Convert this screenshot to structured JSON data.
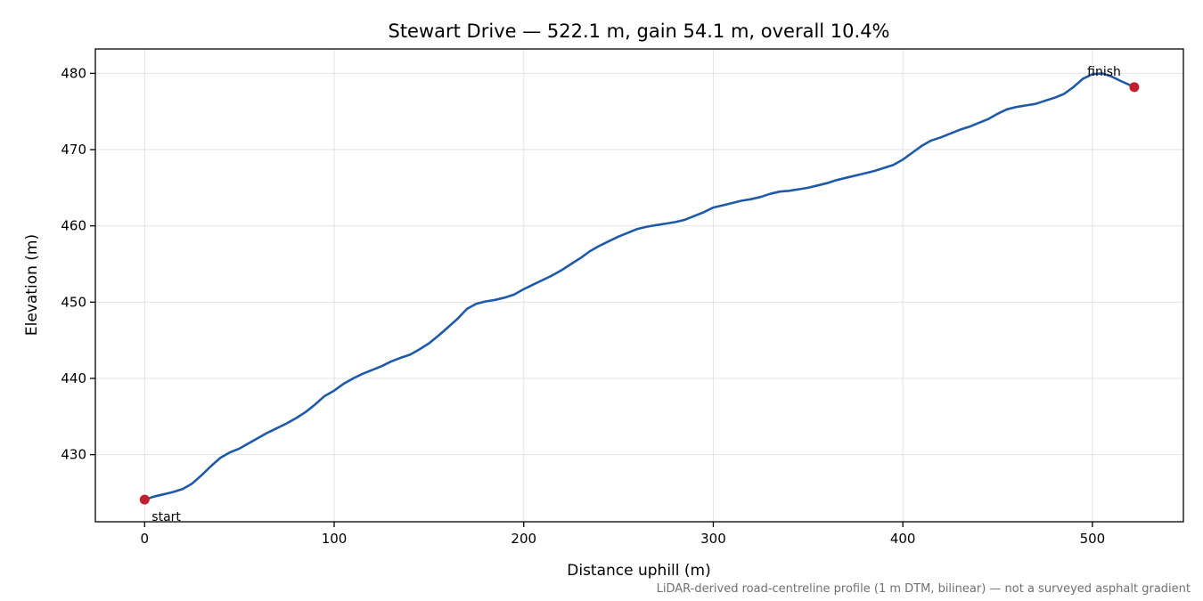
{
  "chart_data": {
    "type": "line",
    "title": "Stewart Drive — 522.1 m, gain 54.1 m, overall 10.4%",
    "xlabel": "Distance uphill (m)",
    "ylabel": "Elevation (m)",
    "xlim": [
      -26,
      548
    ],
    "ylim": [
      421.2,
      483.2
    ],
    "xticks": [
      0,
      100,
      200,
      300,
      400,
      500
    ],
    "yticks": [
      430,
      440,
      450,
      460,
      470,
      480
    ],
    "grid": true,
    "line_color": "#1f5aa8",
    "marker_color": "#c0202e",
    "series": [
      {
        "x": [
          0,
          5,
          10,
          15,
          20,
          25,
          30,
          35,
          40,
          45,
          50,
          55,
          60,
          65,
          70,
          75,
          80,
          85,
          90,
          95,
          100,
          105,
          110,
          115,
          120,
          125,
          130,
          135,
          140,
          145,
          150,
          155,
          160,
          165,
          170,
          175,
          180,
          185,
          190,
          195,
          200,
          205,
          210,
          215,
          220,
          225,
          230,
          235,
          240,
          245,
          250,
          255,
          260,
          265,
          270,
          275,
          280,
          285,
          290,
          295,
          300,
          305,
          310,
          315,
          320,
          325,
          330,
          335,
          340,
          345,
          350,
          355,
          360,
          365,
          370,
          375,
          380,
          385,
          390,
          395,
          400,
          405,
          410,
          415,
          420,
          425,
          430,
          435,
          440,
          445,
          450,
          455,
          460,
          465,
          470,
          475,
          480,
          485,
          490,
          495,
          500,
          505,
          510,
          515,
          522.1
        ],
        "y": [
          424.1,
          424.5,
          424.8,
          425.1,
          425.5,
          426.2,
          427.3,
          428.5,
          429.6,
          430.3,
          430.8,
          431.5,
          432.2,
          432.9,
          433.5,
          434.1,
          434.8,
          435.6,
          436.6,
          437.7,
          438.4,
          439.3,
          440.0,
          440.6,
          441.1,
          441.6,
          442.2,
          442.7,
          443.1,
          443.8,
          444.6,
          445.6,
          446.7,
          447.8,
          449.1,
          449.8,
          450.1,
          450.3,
          450.6,
          451.0,
          451.7,
          452.3,
          452.9,
          453.5,
          454.2,
          455.0,
          455.8,
          456.7,
          457.4,
          458.0,
          458.6,
          459.1,
          459.6,
          459.9,
          460.1,
          460.3,
          460.5,
          460.8,
          461.3,
          461.8,
          462.4,
          462.7,
          463.0,
          463.3,
          463.5,
          463.8,
          464.2,
          464.5,
          464.6,
          464.8,
          465.0,
          465.3,
          465.6,
          466.0,
          466.3,
          466.6,
          466.9,
          467.2,
          467.6,
          468.0,
          468.7,
          469.6,
          470.5,
          471.2,
          471.6,
          472.1,
          472.6,
          473.0,
          473.5,
          474.0,
          474.7,
          475.3,
          475.6,
          475.8,
          476.0,
          476.4,
          476.8,
          477.3,
          478.2,
          479.3,
          479.9,
          480.0,
          479.6,
          479.0,
          478.2
        ]
      }
    ],
    "markers": [
      {
        "label": "start",
        "x": 0,
        "y": 424.1
      },
      {
        "label": "finish",
        "x": 522.1,
        "y": 478.2
      }
    ],
    "footnote": "LiDAR-derived road-centreline profile (1 m DTM, bilinear) — not a surveyed asphalt gradient"
  }
}
